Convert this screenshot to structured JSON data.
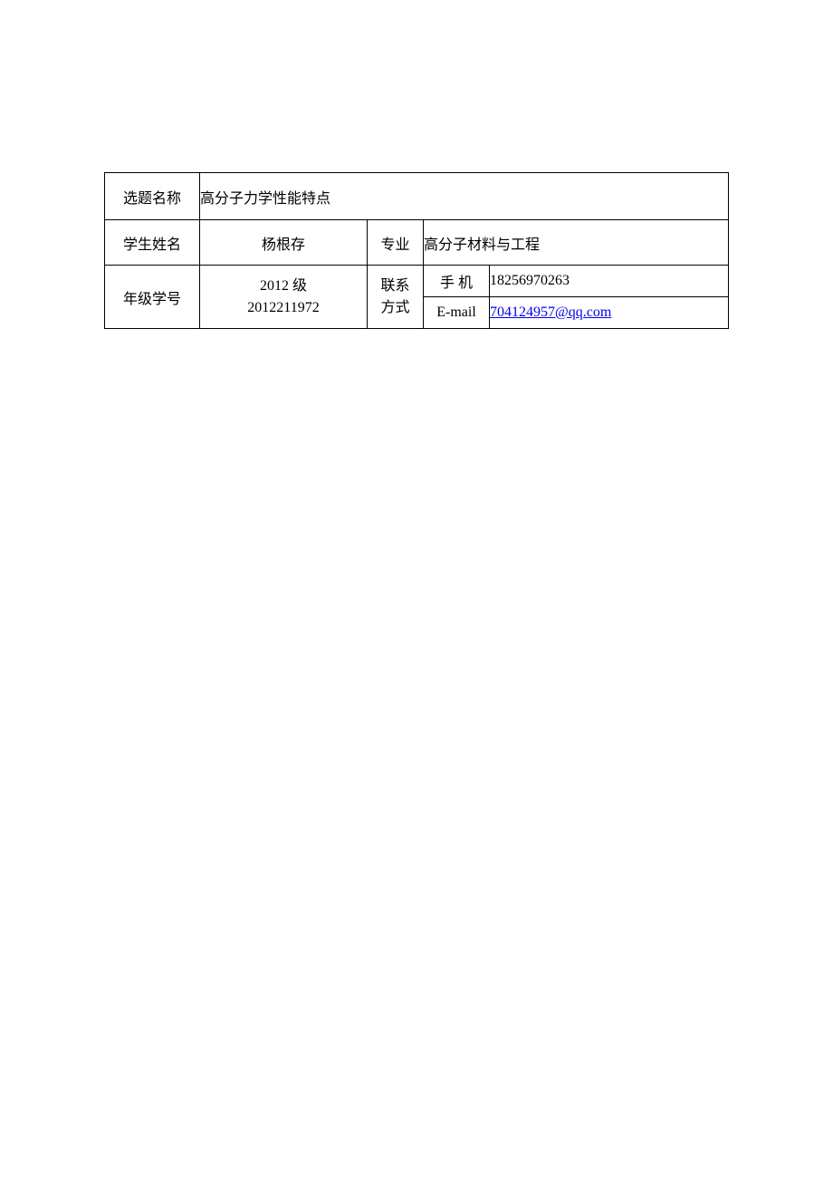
{
  "table": {
    "border_color": "#000000",
    "background_color": "#ffffff",
    "text_color": "#000000",
    "link_color": "#0000ee",
    "font_size": 16,
    "font_family": "SimSun",
    "row1": {
      "label": "选题名称",
      "value": "高分子力学性能特点"
    },
    "row2": {
      "label": "学生姓名",
      "name": "杨根存",
      "major_label": "专业",
      "major_value": "高分子材料与工程"
    },
    "row3": {
      "label": "年级学号",
      "grade": "2012 级",
      "student_id": "2012211972",
      "contact_label_line1": "联系",
      "contact_label_line2": "方式",
      "phone_label": "手 机",
      "phone_value": "18256970263",
      "email_label": "E-mail",
      "email_value": "704124957@qq.com"
    }
  }
}
